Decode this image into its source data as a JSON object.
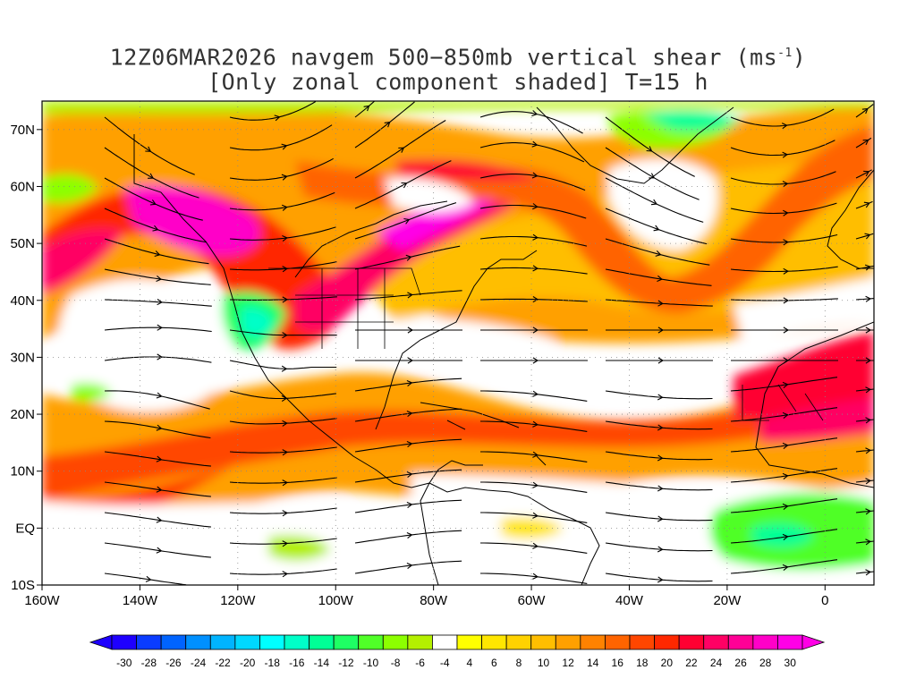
{
  "title": {
    "line1_prefix": "12Z06MAR2026 navgem 500−850mb vertical shear (ms",
    "line1_sup": "-1",
    "line1_suffix": ")",
    "line2": "[Only zonal component shaded] T=15 h"
  },
  "map": {
    "lon_range": [
      -160,
      10
    ],
    "lat_range": [
      -10,
      75
    ],
    "lon_ticks": [
      {
        "lon": -160,
        "label": "160W"
      },
      {
        "lon": -140,
        "label": "140W"
      },
      {
        "lon": -120,
        "label": "120W"
      },
      {
        "lon": -100,
        "label": "100W"
      },
      {
        "lon": -80,
        "label": "80W"
      },
      {
        "lon": -60,
        "label": "60W"
      },
      {
        "lon": -40,
        "label": "40W"
      },
      {
        "lon": -20,
        "label": "20W"
      },
      {
        "lon": 0,
        "label": "0"
      }
    ],
    "lat_ticks": [
      {
        "lat": 70,
        "label": "70N"
      },
      {
        "lat": 60,
        "label": "60N"
      },
      {
        "lat": 50,
        "label": "50N"
      },
      {
        "lat": 40,
        "label": "40N"
      },
      {
        "lat": 30,
        "label": "30N"
      },
      {
        "lat": 20,
        "label": "20N"
      },
      {
        "lat": 10,
        "label": "10N"
      },
      {
        "lat": 0,
        "label": "EQ"
      },
      {
        "lat": -10,
        "label": "10S"
      }
    ],
    "grid": "dotted"
  },
  "colorbar": {
    "values": [
      -30,
      -28,
      -26,
      -24,
      -22,
      -20,
      -18,
      -16,
      -14,
      -12,
      -10,
      -8,
      -6,
      -4,
      4,
      6,
      8,
      10,
      12,
      14,
      16,
      18,
      20,
      22,
      24,
      26,
      28,
      30
    ],
    "labels": [
      "-30",
      "-28",
      "-26",
      "-24",
      "-22",
      "-20",
      "-18",
      "-16",
      "-14",
      "-12",
      "-10",
      "-8",
      "-6",
      "-4",
      "4",
      "6",
      "8",
      "10",
      "12",
      "14",
      "16",
      "18",
      "20",
      "22",
      "24",
      "26",
      "28",
      "30"
    ],
    "colors": [
      "#1e00ff",
      "#0a3cff",
      "#0064ff",
      "#0090ff",
      "#00b4ff",
      "#00d8ff",
      "#00ffff",
      "#00ffc8",
      "#00ff96",
      "#1eff64",
      "#50ff28",
      "#8cff00",
      "#b4f000",
      "#ffffff",
      "#ffff00",
      "#ffe600",
      "#ffd200",
      "#ffbe00",
      "#ffa000",
      "#ff8200",
      "#ff6400",
      "#ff4600",
      "#ff2800",
      "#ff0032",
      "#ff0064",
      "#ff0096",
      "#ff00c8",
      "#ff00e6"
    ]
  },
  "colors": {
    "coast": "#000000",
    "streamline": "#000000"
  }
}
